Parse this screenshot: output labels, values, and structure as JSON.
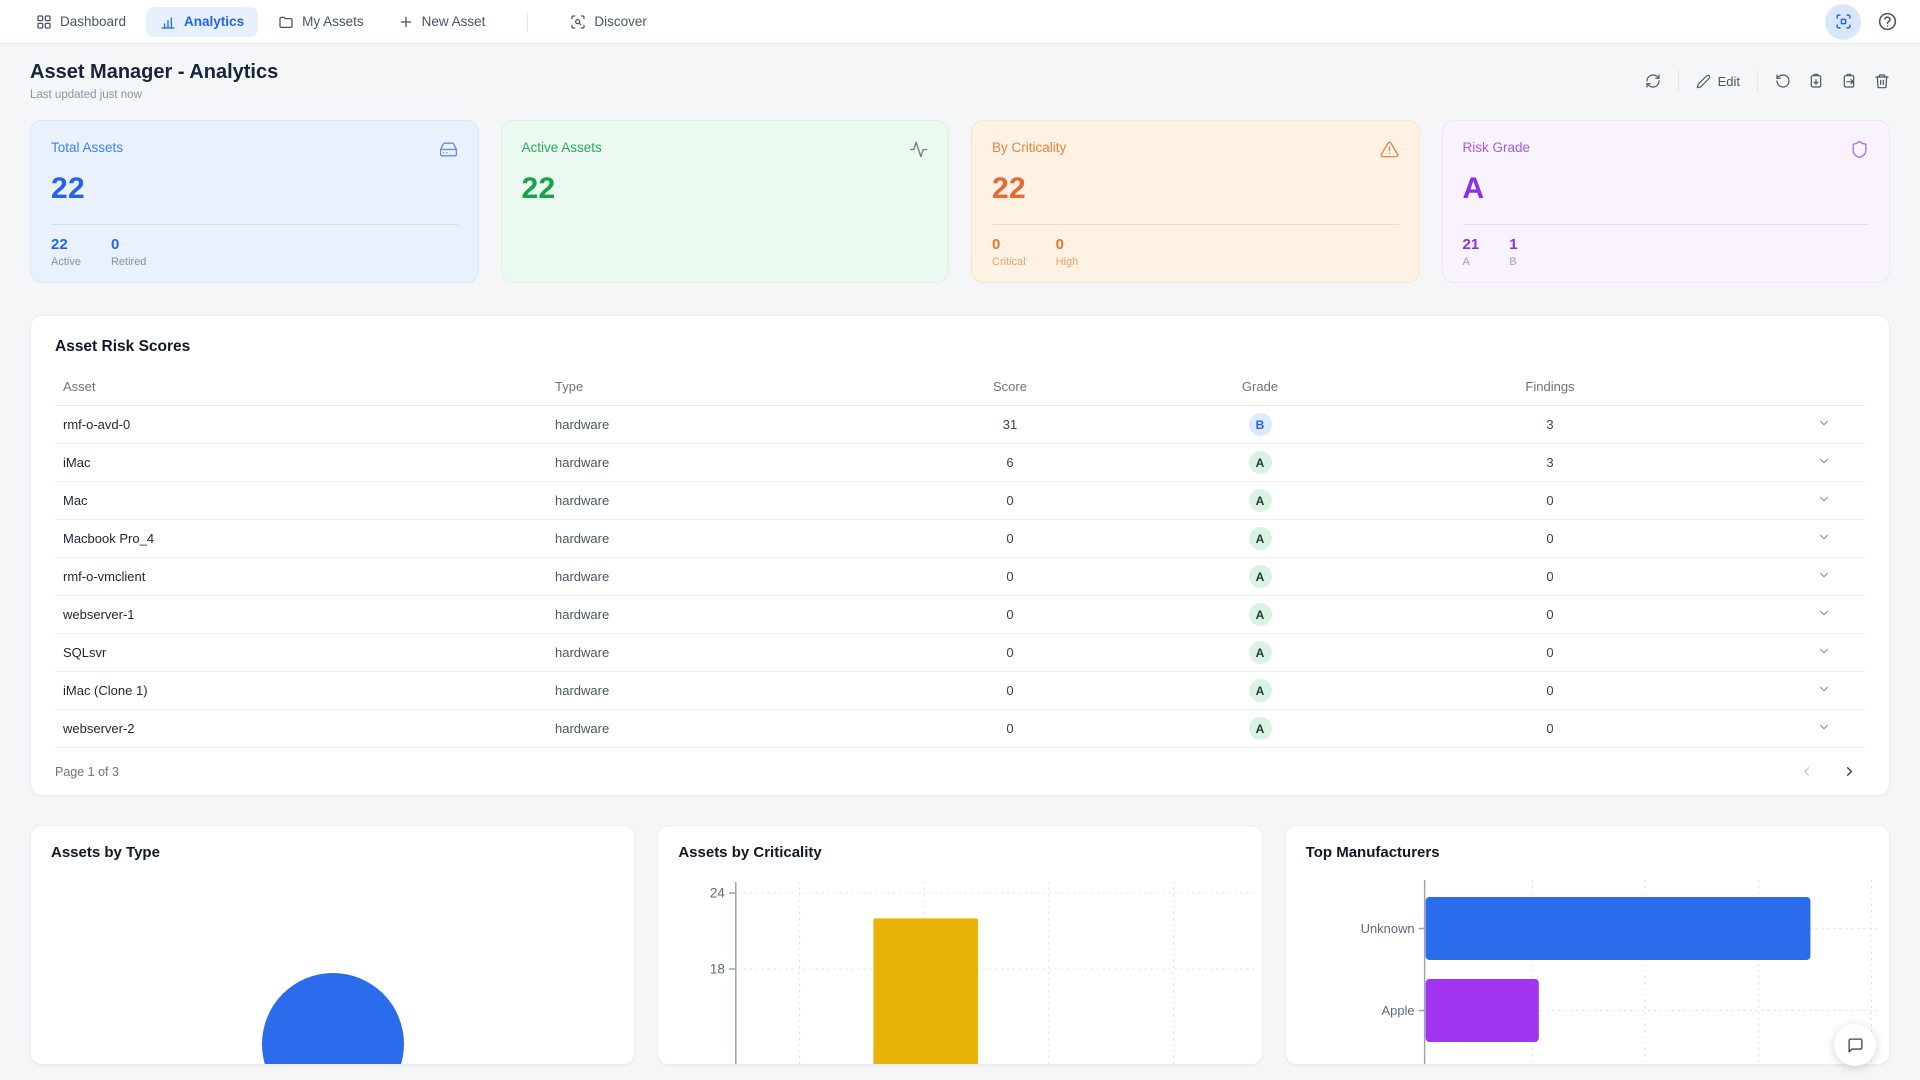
{
  "nav": {
    "items": [
      {
        "label": "Dashboard",
        "icon": "layout-grid-icon",
        "active": false
      },
      {
        "label": "Analytics",
        "icon": "bar-chart-icon",
        "active": true
      },
      {
        "label": "My Assets",
        "icon": "folder-icon",
        "active": false
      },
      {
        "label": "New Asset",
        "icon": "plus-icon",
        "active": false
      },
      {
        "label": "Discover",
        "icon": "scan-search-icon",
        "active": false
      }
    ],
    "right_buttons": [
      {
        "name": "fullscreen-scan",
        "icon": "fullscreen-icon"
      },
      {
        "name": "help",
        "icon": "help-circle-icon"
      }
    ]
  },
  "header": {
    "title": "Asset Manager - Analytics",
    "subtitle": "Last updated just now",
    "toolbar": {
      "refresh_icon": "refresh-icon",
      "edit_label": "Edit",
      "undo_icon": "rotate-ccw-icon",
      "paste_icon": "clipboard-paste-icon",
      "export_icon": "clipboard-export-icon",
      "delete_icon": "trash-icon"
    }
  },
  "stat_cards": [
    {
      "label": "Total Assets",
      "value": "22",
      "theme": "blue",
      "icon": "hard-drive-icon",
      "substats": [
        {
          "value": "22",
          "label": "Active"
        },
        {
          "value": "0",
          "label": "Retired"
        }
      ]
    },
    {
      "label": "Active Assets",
      "value": "22",
      "theme": "green",
      "icon": "activity-icon",
      "substats": []
    },
    {
      "label": "By Criticality",
      "value": "22",
      "theme": "orange",
      "icon": "alert-triangle-icon",
      "substats": [
        {
          "value": "0",
          "label": "Critical"
        },
        {
          "value": "0",
          "label": "High"
        }
      ]
    },
    {
      "label": "Risk Grade",
      "value": "A",
      "theme": "purple",
      "icon": "shield-icon",
      "substats": [
        {
          "value": "21",
          "label": "A"
        },
        {
          "value": "1",
          "label": "B"
        }
      ]
    }
  ],
  "risk_table": {
    "title": "Asset Risk Scores",
    "columns": [
      "Asset",
      "Type",
      "Score",
      "Grade",
      "Findings"
    ],
    "rows": [
      {
        "asset": "rmf-o-avd-0",
        "type": "hardware",
        "score": "31",
        "grade": "B",
        "findings": "3"
      },
      {
        "asset": "iMac",
        "type": "hardware",
        "score": "6",
        "grade": "A",
        "findings": "3"
      },
      {
        "asset": "Mac",
        "type": "hardware",
        "score": "0",
        "grade": "A",
        "findings": "0"
      },
      {
        "asset": "Macbook Pro_4",
        "type": "hardware",
        "score": "0",
        "grade": "A",
        "findings": "0"
      },
      {
        "asset": "rmf-o-vmclient",
        "type": "hardware",
        "score": "0",
        "grade": "A",
        "findings": "0"
      },
      {
        "asset": "webserver-1",
        "type": "hardware",
        "score": "0",
        "grade": "A",
        "findings": "0"
      },
      {
        "asset": "SQLsvr",
        "type": "hardware",
        "score": "0",
        "grade": "A",
        "findings": "0"
      },
      {
        "asset": "iMac (Clone 1)",
        "type": "hardware",
        "score": "0",
        "grade": "A",
        "findings": "0"
      },
      {
        "asset": "webserver-2",
        "type": "hardware",
        "score": "0",
        "grade": "A",
        "findings": "0"
      }
    ],
    "pagination": {
      "label": "Page 1 of 3",
      "prev_icon": "chevron-left-icon",
      "next_icon": "chevron-right-icon"
    }
  },
  "chart_data": [
    {
      "type": "pie",
      "title": "Assets by Type",
      "slices": [
        {
          "label": "",
          "fraction": 1.0,
          "color": "#2a6cec"
        }
      ],
      "note_visible": "single solid blue slice, top arc of pie visible"
    },
    {
      "type": "bar",
      "title": "Assets by Criticality",
      "categories": [
        ""
      ],
      "values": [
        22
      ],
      "bar_color": "#eab308",
      "yticks": [
        24,
        18
      ],
      "ylim_top": 24,
      "grid": "dotted"
    },
    {
      "type": "bar-horizontal",
      "title": "Top Manufacturers",
      "categories": [
        "Unknown",
        "Apple"
      ],
      "values": [
        17,
        5
      ],
      "colors": [
        "#2a6cec",
        "#a034ef"
      ],
      "xgrid_spacing": 5,
      "grid": "dotted"
    }
  ],
  "colors": {
    "accent": "#2563eb",
    "grade_A": {
      "bg": "#d9f2e4",
      "text": "#1e3b31"
    },
    "grade_B": {
      "bg": "#dbeafe",
      "text": "#2563eb"
    }
  },
  "chat": {
    "icon": "message-square-icon"
  }
}
